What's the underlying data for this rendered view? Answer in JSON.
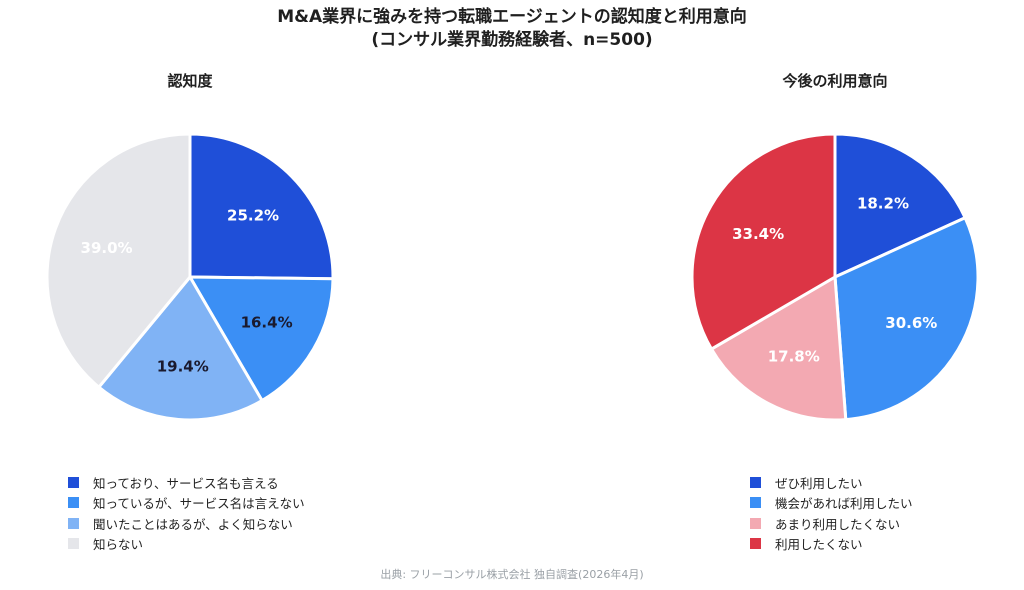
{
  "title_line1": "M&A業界に強みを持つ転職エージェントの認知度と利用意向",
  "title_line2": "(コンサル業界勤務経験者、n=500)",
  "source": "出典: フリーコンサル株式会社 独自調査(2026年4月)",
  "chart_data": [
    {
      "type": "pie",
      "title": "認知度",
      "slices": [
        {
          "label": "知っており、サービス名も言える",
          "value": 25.2,
          "color": "#1f4fd8",
          "label_color": "#ffffff"
        },
        {
          "label": "知っているが、サービス名は言えない",
          "value": 16.4,
          "color": "#3b8ff5",
          "label_color": "#1a1a2e"
        },
        {
          "label": "聞いたことはあるが、よく知らない",
          "value": 19.4,
          "color": "#80b3f5",
          "label_color": "#1a1a2e"
        },
        {
          "label": "知らない",
          "value": 39.0,
          "color": "#e5e6ea",
          "label_color": "#ffffff"
        }
      ]
    },
    {
      "type": "pie",
      "title": "今後の利用意向",
      "slices": [
        {
          "label": "ぜひ利用したい",
          "value": 18.2,
          "color": "#1f4fd8",
          "label_color": "#ffffff"
        },
        {
          "label": "機会があれば利用したい",
          "value": 30.6,
          "color": "#3b8ff5",
          "label_color": "#ffffff"
        },
        {
          "label": "あまり利用したくない",
          "value": 17.8,
          "color": "#f3a9b2",
          "label_color": "#ffffff"
        },
        {
          "label": "利用したくない",
          "value": 33.4,
          "color": "#dc3545",
          "label_color": "#ffffff"
        }
      ]
    }
  ]
}
